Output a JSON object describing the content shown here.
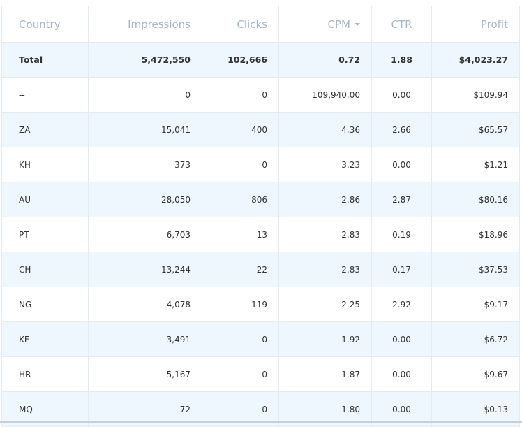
{
  "table": {
    "columns": {
      "country": "Country",
      "impressions": "Impressions",
      "clicks": "Clicks",
      "cpm": "CPM",
      "ctr": "CTR",
      "profit": "Profit"
    },
    "total": {
      "country": "Total",
      "impressions": "5,472,550",
      "clicks": "102,666",
      "cpm": "0.72",
      "ctr": "1.88",
      "profit": "$4,023.27"
    },
    "rows": [
      {
        "country": "--",
        "impressions": "0",
        "clicks": "0",
        "cpm": "109,940.00",
        "ctr": "0.00",
        "profit": "$109.94"
      },
      {
        "country": "ZA",
        "impressions": "15,041",
        "clicks": "400",
        "cpm": "4.36",
        "ctr": "2.66",
        "profit": "$65.57"
      },
      {
        "country": "KH",
        "impressions": "373",
        "clicks": "0",
        "cpm": "3.23",
        "ctr": "0.00",
        "profit": "$1.21"
      },
      {
        "country": "AU",
        "impressions": "28,050",
        "clicks": "806",
        "cpm": "2.86",
        "ctr": "2.87",
        "profit": "$80.16"
      },
      {
        "country": "PT",
        "impressions": "6,703",
        "clicks": "13",
        "cpm": "2.83",
        "ctr": "0.19",
        "profit": "$18.96"
      },
      {
        "country": "CH",
        "impressions": "13,244",
        "clicks": "22",
        "cpm": "2.83",
        "ctr": "0.17",
        "profit": "$37.53"
      },
      {
        "country": "NG",
        "impressions": "4,078",
        "clicks": "119",
        "cpm": "2.25",
        "ctr": "2.92",
        "profit": "$9.17"
      },
      {
        "country": "KE",
        "impressions": "3,491",
        "clicks": "0",
        "cpm": "1.92",
        "ctr": "0.00",
        "profit": "$6.72"
      },
      {
        "country": "HR",
        "impressions": "5,167",
        "clicks": "0",
        "cpm": "1.87",
        "ctr": "0.00",
        "profit": "$9.67"
      },
      {
        "country": "MQ",
        "impressions": "72",
        "clicks": "0",
        "cpm": "1.80",
        "ctr": "0.00",
        "profit": "$0.13"
      }
    ]
  },
  "colors": {
    "header_text": "#a7b6c2",
    "row_alt_bg": "#eef7fd",
    "border": "#e3ebf1",
    "body_text": "#333333"
  },
  "icons": {
    "sort": "caret-down-icon"
  }
}
